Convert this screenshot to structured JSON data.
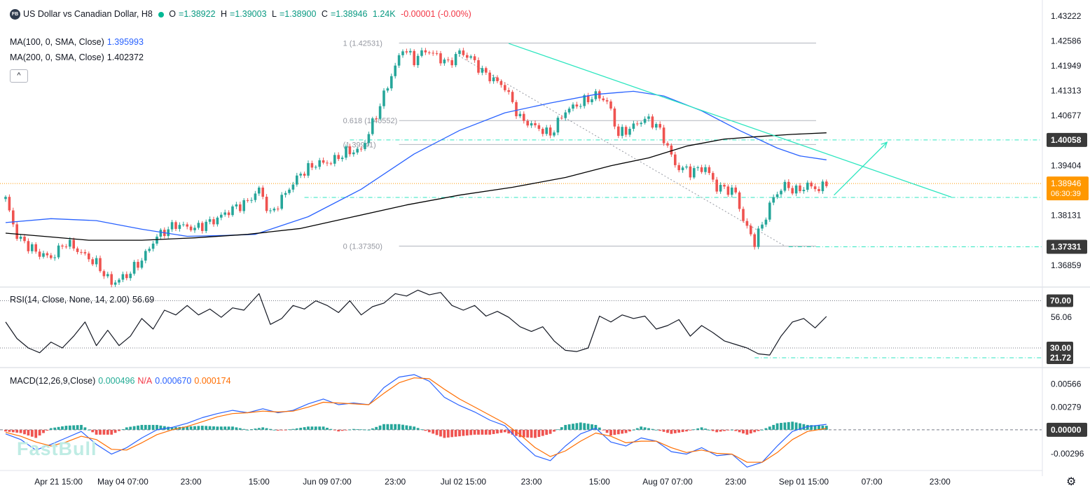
{
  "header": {
    "logo_text": "FB",
    "title": "US Dollar vs Canadian Dollar, H8",
    "ohlc": [
      {
        "label": "O",
        "value": "=1.38922"
      },
      {
        "label": "H",
        "value": "=1.39003"
      },
      {
        "label": "L",
        "value": "=1.38900"
      },
      {
        "label": "C",
        "value": "=1.38946"
      }
    ],
    "volume": "1.24K",
    "change": "-0.00001 (-0.00%)",
    "ma100_label": "MA(100, 0, SMA, Close)",
    "ma100_value": "1.395993",
    "ma200_label": "MA(200, 0, SMA, Close)",
    "ma200_value": "1.402372",
    "collapse_icon": "^",
    "rsi_label": "RSI(14, Close, None, 14, 2.00)",
    "rsi_value": "56.69",
    "macd_label": "MACD(12,26,9,Close)",
    "macd_hist": "0.000496",
    "macd_na": "N/A",
    "macd_line": "0.000670",
    "macd_signal": "0.000174"
  },
  "watermark": "FastBull",
  "settings_icon": "⚙",
  "colors": {
    "up": "#26a69a",
    "down": "#ef5350",
    "ma100": "#2962ff",
    "ma200": "#000000",
    "trend": "#2ee6c0",
    "fib": "#b2b5be",
    "macd": "#2962ff",
    "signal": "#ff6d00",
    "hist_up": "#26a69a",
    "hist_down": "#ef5350"
  },
  "chart_data": {
    "type": "candlestick",
    "symbol": "USDCAD",
    "timeframe": "H8",
    "price_axis": {
      "range": [
        1.3634,
        1.4345
      ],
      "ticks": [
        1.43222,
        1.42586,
        1.41949,
        1.41313,
        1.40677,
        1.39404,
        1.38131,
        1.36859
      ],
      "badges": [
        {
          "value": 1.40058,
          "text": "1.40058",
          "style": "dark"
        },
        {
          "value": 1.38946,
          "text": "1.38946",
          "sub": "06:30:39",
          "style": "orange"
        },
        {
          "value": 1.37331,
          "text": "1.37331",
          "style": "dark"
        }
      ]
    },
    "x_axis_labels": [
      {
        "index": 14,
        "text": "Apr 21 15:00"
      },
      {
        "index": 31,
        "text": "May 04 07:00"
      },
      {
        "index": 49,
        "text": "23:00"
      },
      {
        "index": 67,
        "text": "15:00"
      },
      {
        "index": 85,
        "text": "Jun 09 07:00"
      },
      {
        "index": 103,
        "text": "23:00"
      },
      {
        "index": 121,
        "text": "Jul 02 15:00"
      },
      {
        "index": 139,
        "text": "23:00"
      },
      {
        "index": 157,
        "text": "15:00"
      },
      {
        "index": 175,
        "text": "Aug 07 07:00"
      },
      {
        "index": 193,
        "text": "23:00"
      },
      {
        "index": 211,
        "text": "Sep 01 15:00"
      },
      {
        "index": 229,
        "text": "07:00"
      },
      {
        "index": 247,
        "text": "23:00"
      }
    ],
    "anchors": [
      [
        0,
        1.3855
      ],
      [
        3,
        1.376
      ],
      [
        8,
        1.372
      ],
      [
        12,
        1.3705
      ],
      [
        16,
        1.3745
      ],
      [
        20,
        1.3718
      ],
      [
        24,
        1.369
      ],
      [
        28,
        1.364
      ],
      [
        32,
        1.366
      ],
      [
        36,
        1.37
      ],
      [
        40,
        1.376
      ],
      [
        45,
        1.379
      ],
      [
        50,
        1.378
      ],
      [
        55,
        1.38
      ],
      [
        60,
        1.383
      ],
      [
        64,
        1.3848
      ],
      [
        67,
        1.388
      ],
      [
        70,
        1.3815
      ],
      [
        74,
        1.387
      ],
      [
        78,
        1.392
      ],
      [
        82,
        1.3945
      ],
      [
        86,
        1.395
      ],
      [
        90,
        1.3975
      ],
      [
        94,
        1.398
      ],
      [
        98,
        1.407
      ],
      [
        102,
        1.417
      ],
      [
        105,
        1.424
      ],
      [
        108,
        1.421
      ],
      [
        111,
        1.4235
      ],
      [
        114,
        1.422
      ],
      [
        117,
        1.42
      ],
      [
        120,
        1.423
      ],
      [
        123,
        1.4215
      ],
      [
        126,
        1.418
      ],
      [
        129,
        1.416
      ],
      [
        132,
        1.414
      ],
      [
        136,
        1.406
      ],
      [
        140,
        1.404
      ],
      [
        144,
        1.402
      ],
      [
        148,
        1.408
      ],
      [
        152,
        1.41
      ],
      [
        156,
        1.412
      ],
      [
        159,
        1.4105
      ],
      [
        162,
        1.402
      ],
      [
        165,
        1.4035
      ],
      [
        169,
        1.406
      ],
      [
        172,
        1.4045
      ],
      [
        175,
        1.399
      ],
      [
        177,
        1.394
      ],
      [
        181,
        1.3925
      ],
      [
        185,
        1.3935
      ],
      [
        188,
        1.3885
      ],
      [
        191,
        1.388
      ],
      [
        193,
        1.387
      ],
      [
        195,
        1.38
      ],
      [
        198,
        1.3745
      ],
      [
        200,
        1.379
      ],
      [
        203,
        1.386
      ],
      [
        206,
        1.389
      ],
      [
        209,
        1.3875
      ],
      [
        212,
        1.389
      ],
      [
        215,
        1.388
      ],
      [
        217,
        1.3895
      ]
    ],
    "ma_axis_range": [
      0,
      217
    ],
    "ma100": [
      [
        0,
        1.3795
      ],
      [
        12,
        1.3805
      ],
      [
        24,
        1.38
      ],
      [
        36,
        1.3778
      ],
      [
        48,
        1.376
      ],
      [
        58,
        1.3762
      ],
      [
        66,
        1.3765
      ],
      [
        80,
        1.381
      ],
      [
        94,
        1.388
      ],
      [
        108,
        1.397
      ],
      [
        120,
        1.403
      ],
      [
        132,
        1.4075
      ],
      [
        144,
        1.41
      ],
      [
        156,
        1.4122
      ],
      [
        166,
        1.413
      ],
      [
        174,
        1.4118
      ],
      [
        184,
        1.408
      ],
      [
        194,
        1.403
      ],
      [
        204,
        1.3985
      ],
      [
        210,
        1.3965
      ],
      [
        217,
        1.3955
      ]
    ],
    "ma200": [
      [
        0,
        1.3768
      ],
      [
        10,
        1.376
      ],
      [
        22,
        1.375
      ],
      [
        36,
        1.375
      ],
      [
        50,
        1.3756
      ],
      [
        64,
        1.3765
      ],
      [
        78,
        1.378
      ],
      [
        92,
        1.381
      ],
      [
        106,
        1.384
      ],
      [
        120,
        1.3865
      ],
      [
        134,
        1.3885
      ],
      [
        148,
        1.391
      ],
      [
        160,
        1.394
      ],
      [
        170,
        1.396
      ],
      [
        180,
        1.399
      ],
      [
        190,
        1.4008
      ],
      [
        200,
        1.4015
      ],
      [
        208,
        1.402
      ],
      [
        217,
        1.4024
      ]
    ],
    "fib": {
      "from_index": 104,
      "to_index": 213,
      "levels": [
        {
          "value": 1.42531,
          "label": "1 (1.42531)"
        },
        {
          "value": 1.40552,
          "label": "0.618 (1.40552)"
        },
        {
          "value": 1.39941,
          "label": "(1.39941)"
        },
        {
          "value": 1.3735,
          "label": "0 (1.37350)"
        }
      ]
    },
    "trendline": {
      "from": [
        133,
        1.4252
      ],
      "to": [
        250,
        1.386
      ]
    },
    "projection_arrow": {
      "from": [
        219,
        1.3865
      ],
      "to": [
        233,
        1.4
      ]
    },
    "diagonal_guide": {
      "from": [
        119,
        1.4225
      ],
      "to": [
        206,
        1.3735
      ]
    },
    "horizontal_levels": [
      {
        "value": 1.40058,
        "from_index": 91,
        "to_index": 270
      },
      {
        "value": 1.3859,
        "from_index": 79,
        "to_index": 270
      },
      {
        "value": 1.37331,
        "from_index": 207,
        "to_index": 270
      }
    ],
    "rsi": {
      "range": [
        14,
        81
      ],
      "ticks": [
        56.06
      ],
      "levels": [
        70,
        30
      ],
      "badges": [
        {
          "value": 70,
          "text": "70.00"
        },
        {
          "value": 30,
          "text": "30.00"
        },
        {
          "value": 21.72,
          "text": "21.72"
        }
      ],
      "points": [
        [
          0,
          52
        ],
        [
          3,
          38
        ],
        [
          6,
          30
        ],
        [
          9,
          26
        ],
        [
          12,
          35
        ],
        [
          15,
          30
        ],
        [
          18,
          40
        ],
        [
          21,
          52
        ],
        [
          24,
          32
        ],
        [
          27,
          45
        ],
        [
          30,
          32
        ],
        [
          33,
          40
        ],
        [
          36,
          55
        ],
        [
          39,
          46
        ],
        [
          42,
          62
        ],
        [
          45,
          58
        ],
        [
          48,
          66
        ],
        [
          51,
          58
        ],
        [
          54,
          63
        ],
        [
          57,
          56
        ],
        [
          60,
          64
        ],
        [
          63,
          62
        ],
        [
          67,
          76
        ],
        [
          70,
          50
        ],
        [
          73,
          55
        ],
        [
          76,
          66
        ],
        [
          79,
          63
        ],
        [
          82,
          70
        ],
        [
          85,
          66
        ],
        [
          88,
          60
        ],
        [
          91,
          70
        ],
        [
          94,
          58
        ],
        [
          97,
          65
        ],
        [
          100,
          68
        ],
        [
          103,
          76
        ],
        [
          106,
          74
        ],
        [
          109,
          79
        ],
        [
          112,
          75
        ],
        [
          115,
          77
        ],
        [
          118,
          66
        ],
        [
          121,
          62
        ],
        [
          124,
          66
        ],
        [
          127,
          57
        ],
        [
          130,
          61
        ],
        [
          133,
          56
        ],
        [
          136,
          48
        ],
        [
          139,
          44
        ],
        [
          142,
          48
        ],
        [
          145,
          36
        ],
        [
          148,
          28
        ],
        [
          151,
          27
        ],
        [
          154,
          30
        ],
        [
          157,
          57
        ],
        [
          160,
          52
        ],
        [
          163,
          58
        ],
        [
          166,
          55
        ],
        [
          169,
          57
        ],
        [
          172,
          46
        ],
        [
          175,
          49
        ],
        [
          178,
          54
        ],
        [
          181,
          40
        ],
        [
          184,
          49
        ],
        [
          187,
          43
        ],
        [
          190,
          36
        ],
        [
          193,
          33
        ],
        [
          196,
          30
        ],
        [
          199,
          25
        ],
        [
          202,
          24
        ],
        [
          205,
          40
        ],
        [
          208,
          52
        ],
        [
          211,
          55
        ],
        [
          214,
          47
        ],
        [
          217,
          56.69
        ]
      ]
    },
    "macd": {
      "range": [
        -0.0045,
        0.0075
      ],
      "ticks": [
        0.00566,
        0.00279,
        -0.00296
      ],
      "badge": {
        "value": 0.0,
        "text": "0.00000"
      },
      "macd_line": [
        [
          0,
          -0.0005
        ],
        [
          4,
          -0.0012
        ],
        [
          8,
          -0.0025
        ],
        [
          12,
          -0.0018
        ],
        [
          16,
          -0.001
        ],
        [
          20,
          -0.0002
        ],
        [
          24,
          -0.0018
        ],
        [
          28,
          -0.003
        ],
        [
          32,
          -0.0022
        ],
        [
          36,
          -0.001
        ],
        [
          40,
          0.0
        ],
        [
          44,
          0.0003
        ],
        [
          48,
          0.0008
        ],
        [
          52,
          0.0015
        ],
        [
          56,
          0.002
        ],
        [
          60,
          0.0024
        ],
        [
          64,
          0.0021
        ],
        [
          68,
          0.0026
        ],
        [
          72,
          0.0021
        ],
        [
          76,
          0.0024
        ],
        [
          80,
          0.0032
        ],
        [
          84,
          0.0038
        ],
        [
          88,
          0.0031
        ],
        [
          92,
          0.0033
        ],
        [
          96,
          0.0031
        ],
        [
          100,
          0.0052
        ],
        [
          104,
          0.0065
        ],
        [
          108,
          0.0068
        ],
        [
          112,
          0.006
        ],
        [
          116,
          0.004
        ],
        [
          120,
          0.003
        ],
        [
          124,
          0.0022
        ],
        [
          128,
          0.0012
        ],
        [
          132,
          0.0005
        ],
        [
          136,
          -0.0015
        ],
        [
          140,
          -0.0032
        ],
        [
          144,
          -0.0038
        ],
        [
          148,
          -0.002
        ],
        [
          152,
          -0.0005
        ],
        [
          156,
          0.0002
        ],
        [
          160,
          -0.0015
        ],
        [
          164,
          -0.002
        ],
        [
          168,
          -0.001
        ],
        [
          172,
          -0.0014
        ],
        [
          176,
          -0.0027
        ],
        [
          180,
          -0.003
        ],
        [
          184,
          -0.0022
        ],
        [
          188,
          -0.0032
        ],
        [
          192,
          -0.003
        ],
        [
          196,
          -0.0046
        ],
        [
          200,
          -0.004
        ],
        [
          204,
          -0.002
        ],
        [
          208,
          -0.0002
        ],
        [
          212,
          0.0004
        ],
        [
          217,
          0.00067
        ]
      ],
      "signal_line": [
        [
          0,
          -0.0003
        ],
        [
          4,
          -0.0008
        ],
        [
          8,
          -0.0015
        ],
        [
          12,
          -0.002
        ],
        [
          16,
          -0.0015
        ],
        [
          20,
          -0.0008
        ],
        [
          24,
          -0.0012
        ],
        [
          28,
          -0.0024
        ],
        [
          32,
          -0.0025
        ],
        [
          36,
          -0.0016
        ],
        [
          40,
          -0.0006
        ],
        [
          44,
          0.0
        ],
        [
          48,
          0.0004
        ],
        [
          52,
          0.001
        ],
        [
          56,
          0.0016
        ],
        [
          60,
          0.002
        ],
        [
          64,
          0.0021
        ],
        [
          68,
          0.0023
        ],
        [
          72,
          0.0022
        ],
        [
          76,
          0.0023
        ],
        [
          80,
          0.0028
        ],
        [
          84,
          0.0034
        ],
        [
          88,
          0.0033
        ],
        [
          92,
          0.0032
        ],
        [
          96,
          0.0031
        ],
        [
          100,
          0.0045
        ],
        [
          104,
          0.0058
        ],
        [
          108,
          0.0064
        ],
        [
          112,
          0.0063
        ],
        [
          116,
          0.005
        ],
        [
          120,
          0.0038
        ],
        [
          124,
          0.0028
        ],
        [
          128,
          0.0018
        ],
        [
          132,
          0.0008
        ],
        [
          136,
          -0.0006
        ],
        [
          140,
          -0.0022
        ],
        [
          144,
          -0.0033
        ],
        [
          148,
          -0.0026
        ],
        [
          152,
          -0.0014
        ],
        [
          156,
          -0.0004
        ],
        [
          160,
          -0.0008
        ],
        [
          164,
          -0.0016
        ],
        [
          168,
          -0.0014
        ],
        [
          172,
          -0.0014
        ],
        [
          176,
          -0.0022
        ],
        [
          180,
          -0.0028
        ],
        [
          184,
          -0.0025
        ],
        [
          188,
          -0.0029
        ],
        [
          192,
          -0.003
        ],
        [
          196,
          -0.004
        ],
        [
          200,
          -0.004
        ],
        [
          204,
          -0.0028
        ],
        [
          208,
          -0.0012
        ],
        [
          212,
          -0.0002
        ],
        [
          217,
          0.000174
        ]
      ]
    }
  }
}
